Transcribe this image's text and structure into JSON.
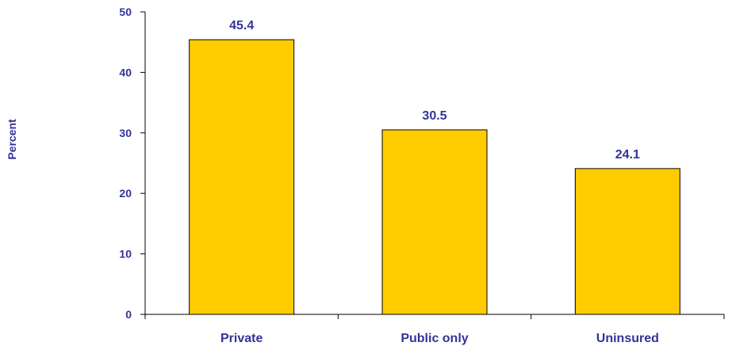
{
  "chart_data": {
    "type": "bar",
    "categories": [
      "Private",
      "Public only",
      "Uninsured"
    ],
    "values": [
      45.4,
      30.5,
      24.1
    ],
    "data_labels": [
      "45.4",
      "30.5",
      "24.1"
    ],
    "title": "",
    "xlabel": "",
    "ylabel": "Percent",
    "ylim": [
      0,
      50
    ],
    "yticks": [
      0,
      10,
      20,
      30,
      40,
      50
    ],
    "grid": false,
    "legend": "none"
  },
  "colors": {
    "bar_fill": "#FFCC00",
    "bar_stroke": "#000000",
    "text": "#333399",
    "axis": "#000000"
  }
}
